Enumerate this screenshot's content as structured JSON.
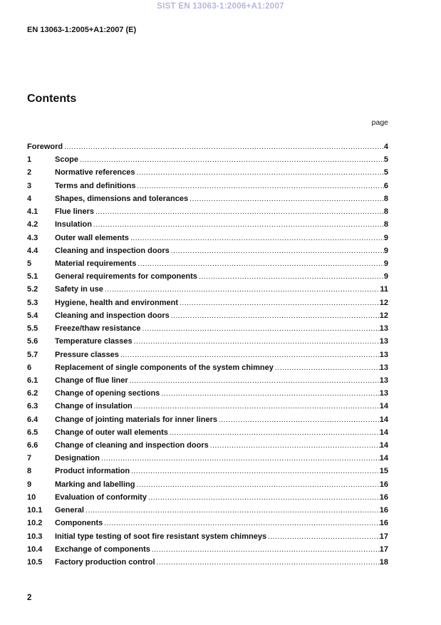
{
  "page": {
    "watermark": "SIST EN 13063-1:2006+A1:2007",
    "doc_id": "EN 13063-1:2005+A1:2007 (E)",
    "footer_page_number": "2"
  },
  "colors": {
    "watermark": "#b5b5e4",
    "text": "#111111",
    "background": "#ffffff"
  },
  "contents": {
    "heading": "Contents",
    "page_label": "page",
    "entries": [
      {
        "num": "",
        "title": "Foreword",
        "page": "4"
      },
      {
        "num": "1",
        "title": "Scope",
        "page": "5"
      },
      {
        "num": "2",
        "title": "Normative references",
        "page": "5"
      },
      {
        "num": "3",
        "title": "Terms and definitions",
        "page": "6"
      },
      {
        "num": "4",
        "title": "Shapes, dimensions and tolerances",
        "page": "8"
      },
      {
        "num": "4.1",
        "title": "Flue liners",
        "page": "8"
      },
      {
        "num": "4.2",
        "title": "Insulation",
        "page": "8"
      },
      {
        "num": "4.3",
        "title": "Outer wall elements",
        "page": "9"
      },
      {
        "num": "4.4",
        "title": "Cleaning and inspection doors",
        "page": "9"
      },
      {
        "num": "5",
        "title": "Material requirements",
        "page": "9"
      },
      {
        "num": "5.1",
        "title": "General requirements for components",
        "page": "9"
      },
      {
        "num": "5.2",
        "title": "Safety in use",
        "page": "11"
      },
      {
        "num": "5.3",
        "title": "Hygiene, health and environment",
        "page": "12"
      },
      {
        "num": "5.4",
        "title": "Cleaning and inspection doors",
        "page": "12"
      },
      {
        "num": "5.5",
        "title": "Freeze/thaw resistance",
        "page": "13"
      },
      {
        "num": "5.6",
        "title": "Temperature classes",
        "page": "13"
      },
      {
        "num": "5.7",
        "title": "Pressure classes",
        "page": "13"
      },
      {
        "num": "6",
        "title": "Replacement of single components of the system chimney",
        "page": "13"
      },
      {
        "num": "6.1",
        "title": "Change of flue liner",
        "page": "13"
      },
      {
        "num": "6.2",
        "title": "Change of opening sections",
        "page": "13"
      },
      {
        "num": "6.3",
        "title": "Change of insulation",
        "page": "14"
      },
      {
        "num": "6.4",
        "title": "Change of jointing materials for inner liners",
        "page": "14"
      },
      {
        "num": "6.5",
        "title": "Change of outer wall elements",
        "page": "14"
      },
      {
        "num": "6.6",
        "title": "Change of cleaning and inspection doors",
        "page": "14"
      },
      {
        "num": "7",
        "title": "Designation",
        "page": "14"
      },
      {
        "num": "8",
        "title": "Product information",
        "page": "15"
      },
      {
        "num": "9",
        "title": "Marking and labelling",
        "page": "16"
      },
      {
        "num": "10",
        "title": "Evaluation of conformity",
        "page": "16"
      },
      {
        "num": "10.1",
        "title": "General",
        "page": "16"
      },
      {
        "num": "10.2",
        "title": "Components",
        "page": "16"
      },
      {
        "num": "10.3",
        "title": "Initial type testing of soot fire resistant system chimneys",
        "page": "17"
      },
      {
        "num": "10.4",
        "title": "Exchange of components",
        "page": "17"
      },
      {
        "num": "10.5",
        "title": "Factory production control",
        "page": "18"
      }
    ]
  }
}
